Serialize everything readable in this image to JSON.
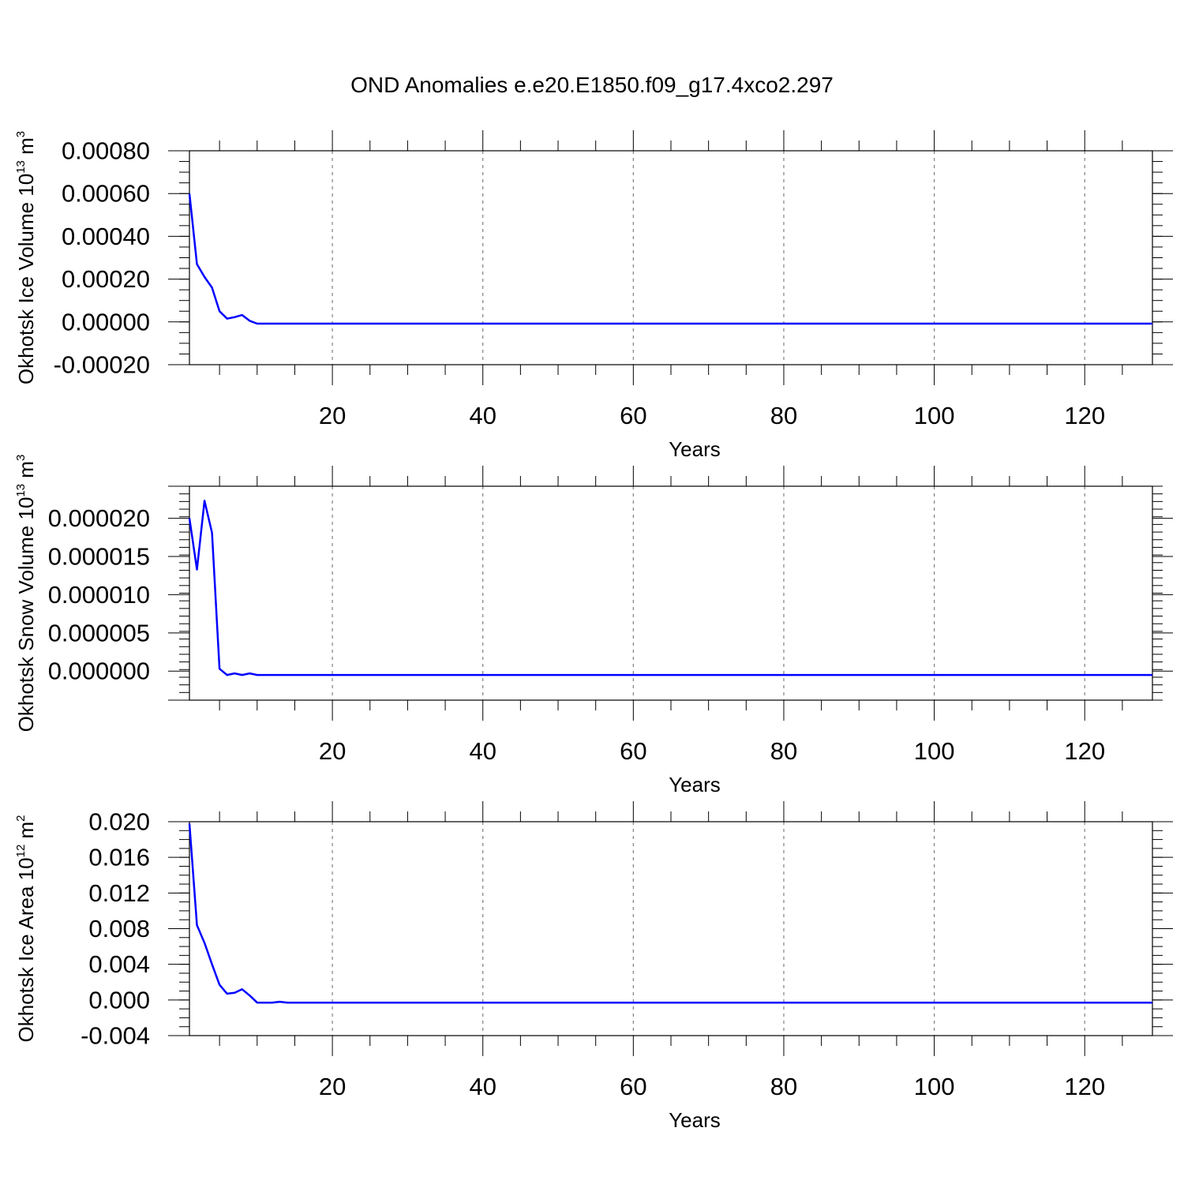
{
  "title": "OND Anomalies e.e20.E1850.f09_g17.4xco2.297",
  "colors": {
    "series": "#0000ff",
    "axis": "#000000",
    "grid": "#808080"
  },
  "chart_data": [
    {
      "type": "line",
      "ylabel": {
        "text": "Okhotsk Ice Volume 10",
        "sup": "13",
        "unit": " m",
        "unit_sup": "3"
      },
      "xlabel": "Years",
      "xlim": [
        1,
        129
      ],
      "ylim": [
        -0.0002,
        0.0008
      ],
      "x_ticks": [
        20,
        40,
        60,
        80,
        100,
        120
      ],
      "x_tick_labels": [
        "20",
        "40",
        "60",
        "80",
        "100",
        "120"
      ],
      "y_ticks": [
        -0.0002,
        0.0,
        0.0002,
        0.0004,
        0.0006,
        0.0008
      ],
      "y_tick_labels": [
        "-0.00020",
        "0.00000",
        "0.00020",
        "0.00040",
        "0.00060",
        "0.00080"
      ],
      "y_minor_step": 5e-05,
      "grid": "x-dashed",
      "series": [
        {
          "x": [
            1,
            2,
            3,
            4,
            5,
            6,
            7,
            8,
            9,
            10,
            11,
            12,
            13,
            14,
            129
          ],
          "y": [
            0.0006,
            0.00027,
            0.00021,
            0.00016,
            5e-05,
            1.5e-05,
            2.2e-05,
            3.2e-05,
            5e-06,
            -8e-06,
            -8e-06,
            -8e-06,
            -8e-06,
            -8e-06,
            -8e-06
          ]
        }
      ]
    },
    {
      "type": "line",
      "ylabel": {
        "text": "Okhotsk Snow Volume 10",
        "sup": "13",
        "unit": " m",
        "unit_sup": "3"
      },
      "xlabel": "Years",
      "xlim": [
        1,
        129
      ],
      "ylim": [
        -3.8e-06,
        2.42e-05
      ],
      "x_ticks": [
        20,
        40,
        60,
        80,
        100,
        120
      ],
      "x_tick_labels": [
        "20",
        "40",
        "60",
        "80",
        "100",
        "120"
      ],
      "y_ticks": [
        0.0,
        5e-06,
        1e-05,
        1.5e-05,
        2e-05
      ],
      "y_tick_labels": [
        "0.000000",
        "0.000005",
        "0.000010",
        "0.000015",
        "0.000020"
      ],
      "y_minor_step": 1e-06,
      "grid": "x-dashed",
      "series": [
        {
          "x": [
            1,
            2,
            3,
            4,
            5,
            6,
            7,
            8,
            9,
            10,
            11,
            12,
            13,
            14,
            129
          ],
          "y": [
            2e-05,
            1.33e-05,
            2.23e-05,
            1.81e-05,
            3e-07,
            -5e-07,
            -3e-07,
            -5e-07,
            -3e-07,
            -5e-07,
            -5e-07,
            -5e-07,
            -5e-07,
            -5e-07,
            -5e-07
          ]
        }
      ]
    },
    {
      "type": "line",
      "ylabel": {
        "text": "Okhotsk Ice Area 10",
        "sup": "12",
        "unit": " m",
        "unit_sup": "2"
      },
      "xlabel": "Years",
      "xlim": [
        1,
        129
      ],
      "ylim": [
        -0.004,
        0.02
      ],
      "x_ticks": [
        20,
        40,
        60,
        80,
        100,
        120
      ],
      "x_tick_labels": [
        "20",
        "40",
        "60",
        "80",
        "100",
        "120"
      ],
      "y_ticks": [
        -0.004,
        0.0,
        0.004,
        0.008,
        0.012,
        0.016,
        0.02
      ],
      "y_tick_labels": [
        "-0.004",
        "0.000",
        "0.004",
        "0.008",
        "0.012",
        "0.016",
        "0.020"
      ],
      "y_minor_step": 0.001,
      "grid": "x-dashed",
      "series": [
        {
          "x": [
            1,
            2,
            3,
            4,
            5,
            6,
            7,
            8,
            9,
            10,
            11,
            12,
            13,
            14,
            129
          ],
          "y": [
            0.0198,
            0.0084,
            0.0064,
            0.004,
            0.0017,
            0.0007,
            0.0008,
            0.0012,
            0.0005,
            -0.0003,
            -0.0003,
            -0.0003,
            -0.0002,
            -0.0003,
            -0.0003
          ]
        }
      ]
    }
  ]
}
